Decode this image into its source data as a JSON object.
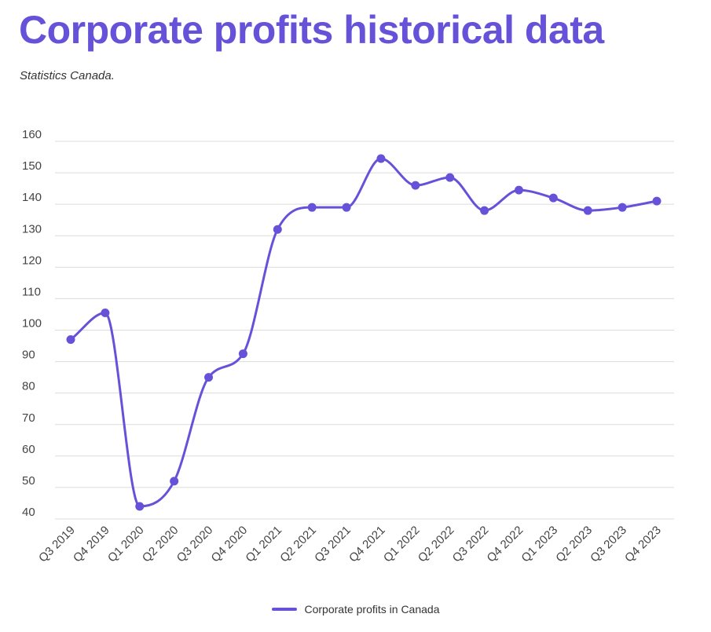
{
  "title": "Corporate profits historical data",
  "subtitle": "Statistics Canada.",
  "colors": {
    "accent": "#6652d9",
    "grid": "#dcdcdc",
    "text": "#444444"
  },
  "chart_data": {
    "type": "line",
    "title": "Corporate profits historical data",
    "subtitle": "Statistics Canada.",
    "xlabel": "",
    "ylabel": "",
    "ylim": [
      40,
      160
    ],
    "yticks": [
      40,
      50,
      60,
      70,
      80,
      90,
      100,
      110,
      120,
      130,
      140,
      150,
      160
    ],
    "grid": true,
    "legend_position": "bottom-center",
    "smooth": true,
    "categories": [
      "Q3 2019",
      "Q4 2019",
      "Q1 2020",
      "Q2 2020",
      "Q3 2020",
      "Q4 2020",
      "Q1 2021",
      "Q2 2021",
      "Q3 2021",
      "Q4 2021",
      "Q1 2022",
      "Q2 2022",
      "Q3 2022",
      "Q4 2022",
      "Q1 2023",
      "Q2 2023",
      "Q3 2023",
      "Q4 2023"
    ],
    "series": [
      {
        "name": "Corporate profits in Canada",
        "color": "#6652d9",
        "values": [
          97,
          105.5,
          44,
          52,
          85,
          92.5,
          132,
          139,
          139,
          154.5,
          146,
          148.5,
          138,
          144.5,
          142,
          138,
          139,
          141
        ]
      }
    ]
  }
}
